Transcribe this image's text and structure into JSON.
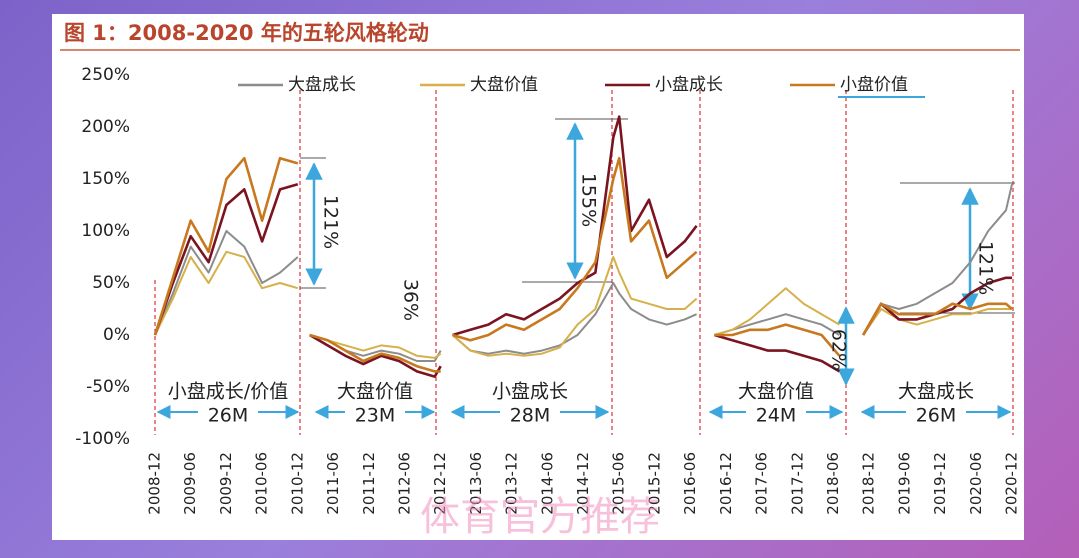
{
  "chart_data": {
    "type": "line",
    "title": "图 1：2008-2020 年的五轮风格轮动",
    "x": [
      "2008-12",
      "2009-03",
      "2009-06",
      "2009-09",
      "2009-12",
      "2010-03",
      "2010-06",
      "2010-09",
      "2010-12",
      "2011-01",
      "2011-02",
      "2011-05",
      "2011-08",
      "2011-11",
      "2012-02",
      "2012-05",
      "2012-08",
      "2012-11",
      "2012-12",
      "2013-01",
      "2013-02",
      "2013-05",
      "2013-08",
      "2013-11",
      "2014-02",
      "2014-05",
      "2014-08",
      "2014-11",
      "2015-02",
      "2015-05",
      "2015-06",
      "2015-08",
      "2015-11",
      "2016-02",
      "2016-05",
      "2016-07",
      "2016-08",
      "2016-10",
      "2017-01",
      "2017-04",
      "2017-07",
      "2017-10",
      "2018-01",
      "2018-04",
      "2018-07",
      "2018-09",
      "2018-11",
      "2019-02",
      "2019-05",
      "2019-08",
      "2019-11",
      "2020-02",
      "2020-05",
      "2020-08",
      "2020-11",
      "2020-12"
    ],
    "xlim": [
      "2008-12",
      "2020-12"
    ],
    "xticks": [
      "2008-12",
      "2009-06",
      "2009-12",
      "2010-06",
      "2010-12",
      "2011-06",
      "2011-12",
      "2012-06",
      "2012-12",
      "2013-06",
      "2013-12",
      "2014-06",
      "2014-12",
      "2015-06",
      "2015-12",
      "2016-06",
      "2016-12",
      "2017-06",
      "2017-12",
      "2018-06",
      "2018-12",
      "2019-06",
      "2019-12",
      "2020-06",
      "2020-12"
    ],
    "ylim": [
      -100,
      250
    ],
    "yticks": [
      {
        "value": -100,
        "label": "-100%"
      },
      {
        "value": -50,
        "label": "-50%"
      },
      {
        "value": 0,
        "label": "0%"
      },
      {
        "value": 50,
        "label": "50%"
      },
      {
        "value": 100,
        "label": "100%"
      },
      {
        "value": 150,
        "label": "150%"
      },
      {
        "value": 200,
        "label": "200%"
      },
      {
        "value": 250,
        "label": "250%"
      }
    ],
    "legend": "upper center",
    "series": [
      {
        "name": "大盘成长",
        "color": "#8c8c8c",
        "values": [
          0,
          40,
          85,
          60,
          100,
          85,
          50,
          60,
          75,
          null,
          0,
          -5,
          -15,
          -20,
          -15,
          -18,
          -25,
          -25,
          -15,
          null,
          0,
          -15,
          -18,
          -15,
          -18,
          -15,
          -10,
          0,
          20,
          50,
          40,
          25,
          15,
          10,
          15,
          20,
          null,
          0,
          5,
          10,
          15,
          20,
          15,
          10,
          0,
          null,
          0,
          30,
          25,
          30,
          40,
          50,
          70,
          100,
          120,
          145
        ]
      },
      {
        "name": "大盘价值",
        "color": "#d6b04a",
        "values": [
          0,
          35,
          75,
          50,
          80,
          75,
          45,
          50,
          45,
          null,
          0,
          -5,
          -10,
          -15,
          -10,
          -12,
          -20,
          -22,
          -18,
          null,
          0,
          -15,
          -20,
          -18,
          -20,
          -18,
          -12,
          10,
          25,
          75,
          60,
          35,
          30,
          25,
          25,
          35,
          null,
          0,
          5,
          15,
          30,
          45,
          30,
          20,
          10,
          null,
          0,
          25,
          15,
          10,
          15,
          20,
          20,
          25,
          25,
          25
        ]
      },
      {
        "name": "小盘成长",
        "color": "#7a1420",
        "values": [
          0,
          50,
          95,
          70,
          125,
          140,
          90,
          140,
          145,
          null,
          0,
          -10,
          -20,
          -28,
          -20,
          -25,
          -35,
          -40,
          -30,
          null,
          0,
          5,
          10,
          20,
          15,
          25,
          35,
          50,
          60,
          190,
          210,
          100,
          130,
          75,
          90,
          105,
          null,
          0,
          -5,
          -10,
          -15,
          -15,
          -20,
          -25,
          -35,
          null,
          0,
          30,
          15,
          15,
          20,
          25,
          40,
          50,
          55,
          55
        ]
      },
      {
        "name": "小盘价值",
        "color": "#c8781e",
        "values": [
          0,
          55,
          110,
          80,
          150,
          170,
          110,
          170,
          165,
          null,
          0,
          -5,
          -15,
          -25,
          -18,
          -22,
          -30,
          -35,
          -35,
          null,
          0,
          -5,
          0,
          10,
          5,
          15,
          25,
          45,
          70,
          150,
          170,
          90,
          110,
          55,
          70,
          80,
          null,
          0,
          0,
          5,
          5,
          10,
          5,
          0,
          -20,
          null,
          0,
          30,
          20,
          20,
          20,
          30,
          25,
          30,
          30,
          25
        ]
      }
    ],
    "annotations": [
      "121%",
      "36%",
      "155%",
      "62%",
      "121%"
    ],
    "periods": [
      {
        "label": "小盘成长/价值",
        "duration": "26M"
      },
      {
        "label": "大盘价值",
        "duration": "23M"
      },
      {
        "label": "小盘成长",
        "duration": "28M"
      },
      {
        "label": "大盘价值",
        "duration": "24M"
      },
      {
        "label": "大盘成长",
        "duration": "26M"
      }
    ],
    "watermark": "体育官方推荐"
  }
}
